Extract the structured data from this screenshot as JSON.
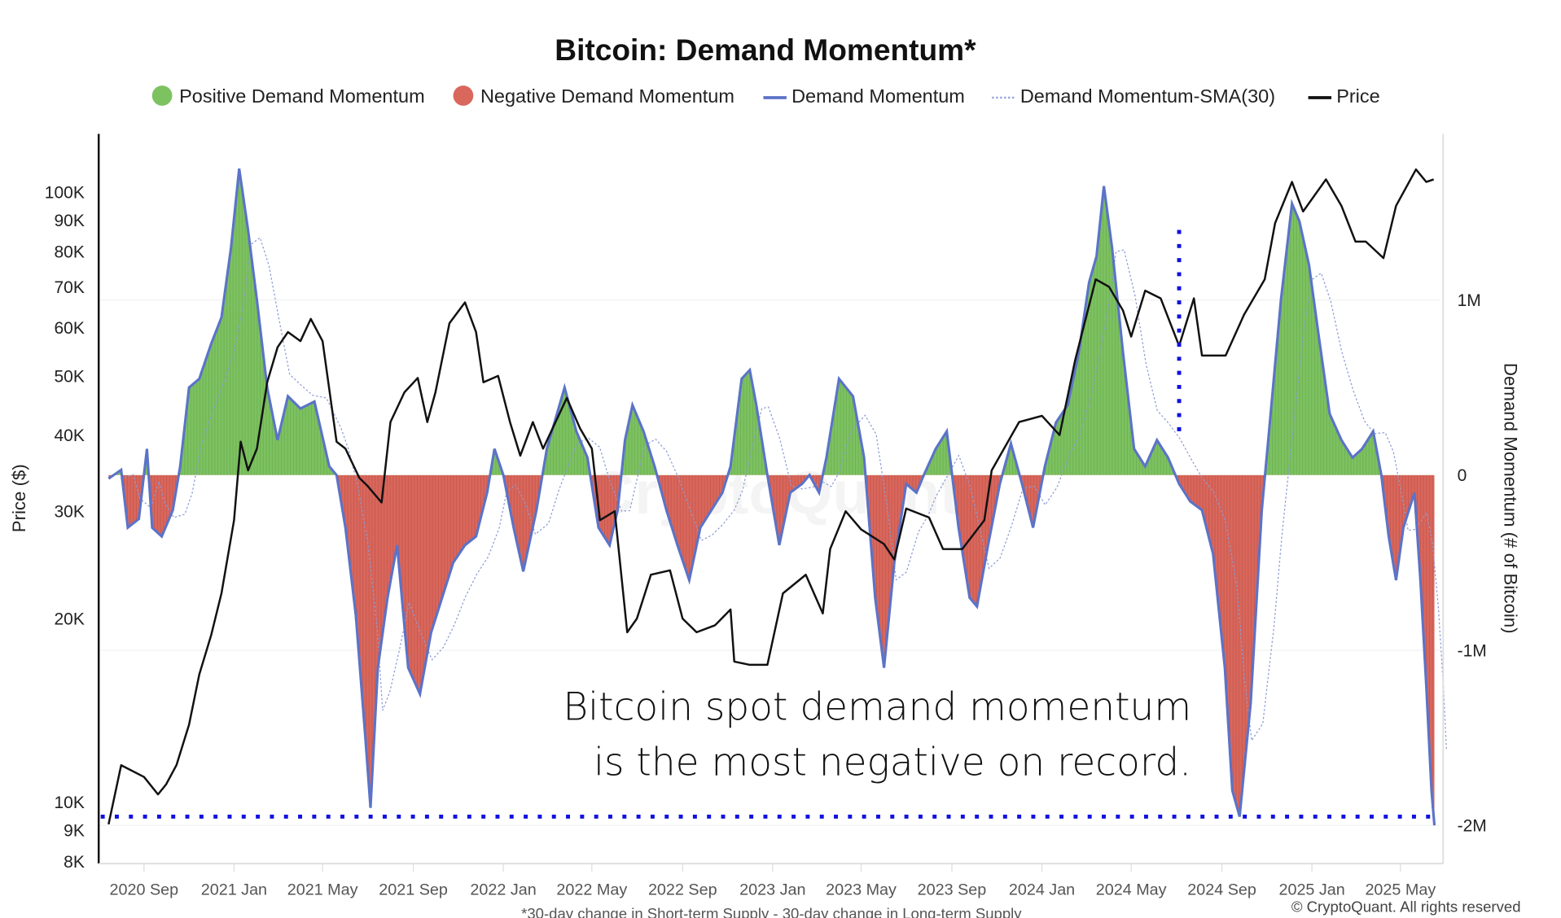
{
  "chart_data": {
    "type": "area+line",
    "title": "Bitcoin: Demand Momentum*",
    "footnote": "*30-day change in Short-term Supply - 30-day change in Long-term Supply",
    "copyright": "© CryptoQuant. All rights reserved",
    "watermark": "CryptoQuant",
    "annotation": [
      "Bitcoin spot demand momentum",
      "is the most negative on record."
    ],
    "legend": {
      "placement": "top-center",
      "items": [
        {
          "label": "Positive Demand Momentum",
          "marker": "circle",
          "color": "#7dc260"
        },
        {
          "label": "Negative Demand Momentum",
          "marker": "circle",
          "color": "#d9675c"
        },
        {
          "label": "Demand Momentum",
          "marker": "line",
          "color": "#5b73c8"
        },
        {
          "label": "Demand Momentum-SMA(30)",
          "marker": "dotted-line",
          "color": "#9aa8dc"
        },
        {
          "label": "Price",
          "marker": "line",
          "color": "#111111"
        }
      ]
    },
    "left_axis": {
      "label": "Price ($)",
      "scale": "log",
      "range": [
        8000,
        125000
      ],
      "ticks": [
        {
          "v": 100000,
          "t": "100K"
        },
        {
          "v": 90000,
          "t": "90K"
        },
        {
          "v": 80000,
          "t": "80K"
        },
        {
          "v": 70000,
          "t": "70K"
        },
        {
          "v": 60000,
          "t": "60K"
        },
        {
          "v": 50000,
          "t": "50K"
        },
        {
          "v": 40000,
          "t": "40K"
        },
        {
          "v": 30000,
          "t": "30K"
        },
        {
          "v": 20000,
          "t": "20K"
        },
        {
          "v": 10000,
          "t": "10K"
        },
        {
          "v": 9000,
          "t": "9K"
        },
        {
          "v": 8000,
          "t": "8K"
        }
      ]
    },
    "right_axis": {
      "label": "Demand Momentum (# of Bitcoin)",
      "scale": "linear",
      "range": [
        -2.2,
        1.85
      ],
      "unit": "M",
      "ticks": [
        {
          "v": 1,
          "t": "1M"
        },
        {
          "v": 0,
          "t": "0"
        },
        {
          "v": -1,
          "t": "-1M"
        },
        {
          "v": -2,
          "t": "-2M"
        }
      ]
    },
    "x_axis": {
      "ticks": [
        {
          "d": "2020-09-01",
          "t": "2020 Sep"
        },
        {
          "d": "2021-01-01",
          "t": "2021 Jan"
        },
        {
          "d": "2021-05-01",
          "t": "2021 May"
        },
        {
          "d": "2021-09-01",
          "t": "2021 Sep"
        },
        {
          "d": "2022-01-01",
          "t": "2022 Jan"
        },
        {
          "d": "2022-05-01",
          "t": "2022 May"
        },
        {
          "d": "2022-09-01",
          "t": "2022 Sep"
        },
        {
          "d": "2023-01-01",
          "t": "2023 Jan"
        },
        {
          "d": "2023-05-01",
          "t": "2023 May"
        },
        {
          "d": "2023-09-01",
          "t": "2023 Sep"
        },
        {
          "d": "2024-01-01",
          "t": "2024 Jan"
        },
        {
          "d": "2024-05-01",
          "t": "2024 May"
        },
        {
          "d": "2024-09-01",
          "t": "2024 Sep"
        },
        {
          "d": "2025-01-01",
          "t": "2025 Jan"
        },
        {
          "d": "2025-05-01",
          "t": "2025 May"
        }
      ]
    },
    "grid": {
      "horizontal": true,
      "vertical": false
    },
    "reference_lines": [
      {
        "type": "horizontal",
        "axis": "right",
        "value": -1.95,
        "style": "dotted",
        "color": "#1010e0"
      },
      {
        "type": "vertical",
        "date": "2024-07-05",
        "from": 0.23,
        "to": 1.4,
        "axis": "right",
        "style": "dotted",
        "color": "#1010e0"
      }
    ],
    "price_series": {
      "name": "Price",
      "unit": "USD",
      "x": [
        "2020-07-15",
        "2020-08-01",
        "2020-09-01",
        "2020-09-20",
        "2020-10-01",
        "2020-10-15",
        "2020-11-01",
        "2020-11-15",
        "2020-12-01",
        "2020-12-15",
        "2021-01-01",
        "2021-01-10",
        "2021-01-20",
        "2021-02-01",
        "2021-02-15",
        "2021-03-01",
        "2021-03-15",
        "2021-04-01",
        "2021-04-15",
        "2021-05-01",
        "2021-05-20",
        "2021-06-01",
        "2021-06-20",
        "2021-07-01",
        "2021-07-20",
        "2021-08-01",
        "2021-08-20",
        "2021-09-07",
        "2021-09-20",
        "2021-10-01",
        "2021-10-20",
        "2021-11-10",
        "2021-11-25",
        "2021-12-05",
        "2021-12-25",
        "2022-01-10",
        "2022-01-24",
        "2022-02-10",
        "2022-02-24",
        "2022-03-28",
        "2022-04-15",
        "2022-05-01",
        "2022-05-12",
        "2022-06-01",
        "2022-06-18",
        "2022-07-01",
        "2022-07-20",
        "2022-08-15",
        "2022-09-01",
        "2022-09-20",
        "2022-10-15",
        "2022-11-05",
        "2022-11-10",
        "2022-12-01",
        "2022-12-25",
        "2023-01-15",
        "2023-02-15",
        "2023-03-10",
        "2023-03-20",
        "2023-04-10",
        "2023-05-01",
        "2023-06-01",
        "2023-06-15",
        "2023-07-01",
        "2023-08-01",
        "2023-08-20",
        "2023-09-15",
        "2023-10-15",
        "2023-10-25",
        "2023-12-01",
        "2024-01-01",
        "2024-01-25",
        "2024-02-15",
        "2024-03-14",
        "2024-04-01",
        "2024-04-20",
        "2024-05-01",
        "2024-05-20",
        "2024-06-10",
        "2024-07-05",
        "2024-07-25",
        "2024-08-05",
        "2024-09-06",
        "2024-10-01",
        "2024-10-29",
        "2024-11-12",
        "2024-12-05",
        "2024-12-20",
        "2025-01-20",
        "2025-02-10",
        "2025-03-01",
        "2025-03-15",
        "2025-04-08",
        "2025-04-25",
        "2025-05-22",
        "2025-06-05",
        "2025-06-15"
      ],
      "values": [
        9200,
        11500,
        11000,
        10300,
        10700,
        11500,
        13400,
        16200,
        18800,
        22000,
        29000,
        39000,
        35000,
        38000,
        48800,
        55700,
        59000,
        57000,
        62000,
        57000,
        39000,
        38000,
        34000,
        33000,
        31000,
        42000,
        47000,
        49600,
        42000,
        47000,
        61000,
        66000,
        59000,
        48800,
        50000,
        42000,
        37000,
        42000,
        38000,
        46000,
        41000,
        38000,
        29000,
        30000,
        19000,
        20000,
        23600,
        24000,
        20000,
        19000,
        19500,
        20700,
        17000,
        16800,
        16800,
        22000,
        23600,
        20400,
        26000,
        30000,
        28000,
        26500,
        25000,
        30300,
        29300,
        26000,
        26000,
        29000,
        35000,
        42000,
        43000,
        40000,
        53000,
        72000,
        70000,
        64000,
        58000,
        69000,
        67000,
        56000,
        67000,
        54000,
        54000,
        63000,
        72000,
        89000,
        104000,
        93000,
        105000,
        95000,
        83000,
        83000,
        78000,
        95000,
        109000,
        104000,
        105000
      ]
    },
    "momentum_series": {
      "name": "Demand Momentum",
      "unit": "million BTC",
      "x": [
        "2020-07-15",
        "2020-08-01",
        "2020-08-10",
        "2020-08-25",
        "2020-09-05",
        "2020-09-12",
        "2020-09-25",
        "2020-10-10",
        "2020-10-20",
        "2020-11-01",
        "2020-11-15",
        "2020-12-01",
        "2020-12-15",
        "2020-12-28",
        "2021-01-08",
        "2021-01-20",
        "2021-02-01",
        "2021-02-15",
        "2021-03-01",
        "2021-03-15",
        "2021-04-01",
        "2021-04-20",
        "2021-05-10",
        "2021-05-20",
        "2021-06-01",
        "2021-06-15",
        "2021-06-28",
        "2021-07-05",
        "2021-07-15",
        "2021-07-28",
        "2021-08-10",
        "2021-08-25",
        "2021-09-10",
        "2021-09-25",
        "2021-10-10",
        "2021-10-25",
        "2021-11-10",
        "2021-11-25",
        "2021-12-10",
        "2021-12-20",
        "2022-01-01",
        "2022-01-15",
        "2022-01-28",
        "2022-02-15",
        "2022-03-01",
        "2022-03-25",
        "2022-04-10",
        "2022-04-25",
        "2022-05-10",
        "2022-05-25",
        "2022-06-05",
        "2022-06-15",
        "2022-06-25",
        "2022-07-10",
        "2022-07-25",
        "2022-08-10",
        "2022-08-25",
        "2022-09-10",
        "2022-09-25",
        "2022-10-10",
        "2022-10-25",
        "2022-11-05",
        "2022-11-20",
        "2022-12-01",
        "2022-12-10",
        "2022-12-25",
        "2023-01-10",
        "2023-01-25",
        "2023-02-10",
        "2023-02-20",
        "2023-03-05",
        "2023-03-15",
        "2023-04-01",
        "2023-04-20",
        "2023-05-05",
        "2023-05-20",
        "2023-06-01",
        "2023-06-15",
        "2023-07-01",
        "2023-07-15",
        "2023-07-25",
        "2023-08-10",
        "2023-08-25",
        "2023-09-10",
        "2023-09-25",
        "2023-10-05",
        "2023-10-20",
        "2023-11-05",
        "2023-11-20",
        "2023-12-05",
        "2023-12-20",
        "2024-01-05",
        "2024-01-20",
        "2024-02-05",
        "2024-02-20",
        "2024-03-05",
        "2024-03-15",
        "2024-03-25",
        "2024-04-05",
        "2024-04-20",
        "2024-05-05",
        "2024-05-20",
        "2024-06-05",
        "2024-06-20",
        "2024-07-05",
        "2024-07-20",
        "2024-08-05",
        "2024-08-20",
        "2024-09-05",
        "2024-09-15",
        "2024-09-25",
        "2024-10-10",
        "2024-10-25",
        "2024-11-05",
        "2024-11-20",
        "2024-12-05",
        "2024-12-15",
        "2024-12-28",
        "2025-01-10",
        "2025-01-25",
        "2025-02-10",
        "2025-02-25",
        "2025-03-10",
        "2025-03-25",
        "2025-04-05",
        "2025-04-15",
        "2025-04-25",
        "2025-05-05",
        "2025-05-20",
        "2025-05-28",
        "2025-06-05",
        "2025-06-12",
        "2025-06-16"
      ],
      "values": [
        -0.02,
        0.03,
        -0.3,
        -0.25,
        0.15,
        -0.3,
        -0.35,
        -0.2,
        0.05,
        0.5,
        0.55,
        0.75,
        0.9,
        1.3,
        1.75,
        1.4,
        1.0,
        0.5,
        0.2,
        0.45,
        0.38,
        0.42,
        0.05,
        0.0,
        -0.3,
        -0.8,
        -1.5,
        -1.9,
        -1.1,
        -0.7,
        -0.4,
        -1.1,
        -1.25,
        -0.9,
        -0.7,
        -0.5,
        -0.4,
        -0.35,
        -0.1,
        0.15,
        0.0,
        -0.3,
        -0.55,
        -0.2,
        0.15,
        0.5,
        0.25,
        0.1,
        -0.3,
        -0.4,
        -0.2,
        0.2,
        0.4,
        0.25,
        0.05,
        -0.2,
        -0.4,
        -0.6,
        -0.3,
        -0.2,
        -0.1,
        0.05,
        0.55,
        0.6,
        0.4,
        0.0,
        -0.4,
        -0.1,
        -0.05,
        0.0,
        -0.1,
        0.1,
        0.55,
        0.45,
        0.1,
        -0.7,
        -1.1,
        -0.5,
        -0.05,
        -0.1,
        0.0,
        0.15,
        0.25,
        -0.3,
        -0.7,
        -0.75,
        -0.4,
        -0.05,
        0.18,
        -0.05,
        -0.3,
        0.05,
        0.3,
        0.4,
        0.7,
        1.1,
        1.25,
        1.65,
        1.3,
        0.7,
        0.15,
        0.05,
        0.2,
        0.1,
        -0.05,
        -0.15,
        -0.2,
        -0.45,
        -1.1,
        -1.8,
        -1.95,
        -1.3,
        -0.2,
        0.3,
        1.0,
        1.55,
        1.45,
        1.2,
        0.8,
        0.35,
        0.2,
        0.1,
        0.15,
        0.25,
        0.0,
        -0.35,
        -0.6,
        -0.3,
        -0.1,
        -0.6,
        -1.2,
        -1.8,
        -2.0
      ]
    }
  }
}
